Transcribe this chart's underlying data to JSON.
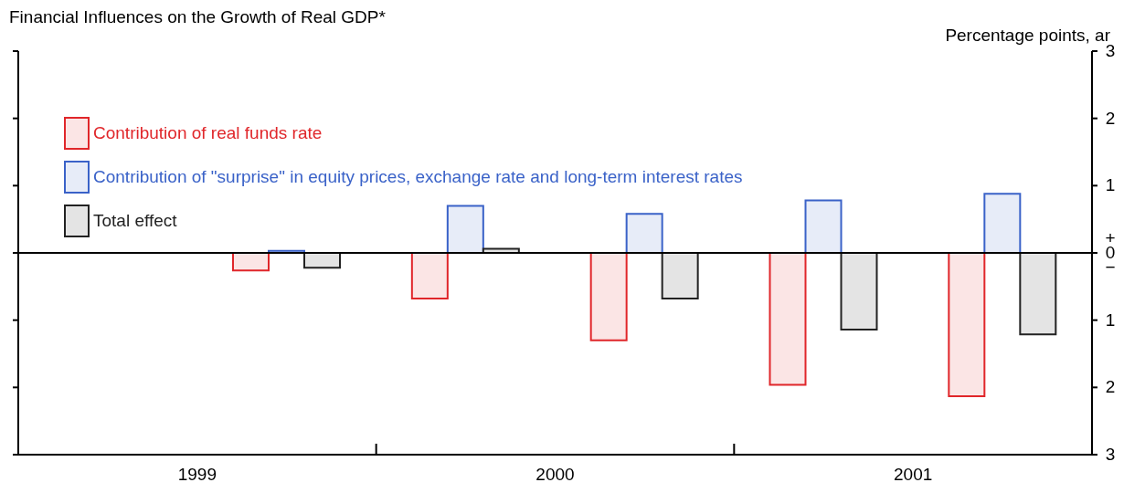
{
  "chart_data": {
    "type": "bar",
    "title": "Financial Influences on the Growth of Real GDP*",
    "ylabel": "Percentage points, ar",
    "x": [
      1999.75,
      2000.25,
      2000.75,
      2001.25,
      2001.75
    ],
    "series": [
      {
        "name": "Contribution of real funds rate",
        "color": "#e0262a",
        "values": [
          -0.26,
          -0.68,
          -1.3,
          -1.96,
          -2.13
        ]
      },
      {
        "name": "Contribution of \"surprise\" in equity prices, exchange rate and long-term interest rates",
        "color": "#3a62c8",
        "values": [
          0.03,
          0.7,
          0.58,
          0.78,
          0.88
        ]
      },
      {
        "name": "Total effect",
        "color": "#222222",
        "values": [
          -0.22,
          0.06,
          -0.68,
          -1.14,
          -1.21
        ]
      }
    ],
    "xlim": [
      1999,
      2002
    ],
    "xticks": [
      {
        "value": 1999.5,
        "label": "1999"
      },
      {
        "value": 2000,
        "label": null
      },
      {
        "value": 2000.5,
        "label": "2000"
      },
      {
        "value": 2001,
        "label": null
      },
      {
        "value": 2001.5,
        "label": "2001"
      }
    ],
    "ylim": [
      -3,
      3
    ],
    "yticks": [
      {
        "value": -3,
        "label": "3"
      },
      {
        "value": -2,
        "label": "2"
      },
      {
        "value": -1,
        "label": "1"
      },
      {
        "value": 0,
        "label": "+\n0\n−"
      },
      1,
      2,
      3
    ],
    "ref_lines": [
      {
        "axis": "y",
        "value": 0,
        "color": "#000000"
      }
    ],
    "legend": "top left",
    "grid": false
  }
}
